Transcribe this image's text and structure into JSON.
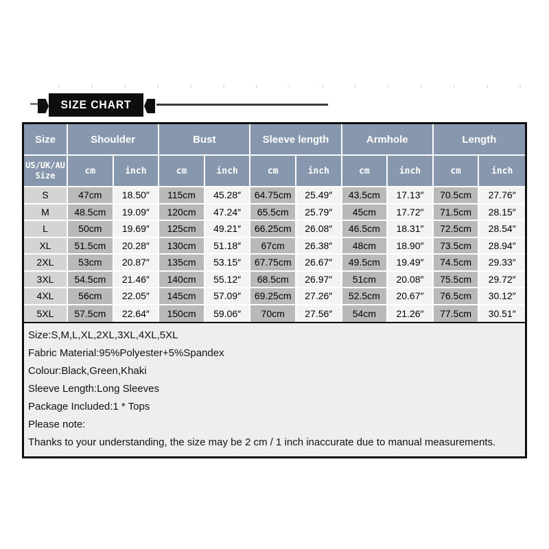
{
  "banner": {
    "title": "SIZE CHART"
  },
  "table": {
    "column_groups": [
      "Size",
      "Shoulder",
      "Bust",
      "Sleeve length",
      "Armhole",
      "Length"
    ],
    "size_header_line1": "US/UK/AU",
    "size_header_line2": "Size",
    "units": [
      "cm",
      "inch"
    ],
    "rows": [
      {
        "size": "S",
        "values": [
          "47cm",
          "18.50″",
          "115cm",
          "45.28″",
          "64.75cm",
          "25.49″",
          "43.5cm",
          "17.13″",
          "70.5cm",
          "27.76″"
        ]
      },
      {
        "size": "M",
        "values": [
          "48.5cm",
          "19.09″",
          "120cm",
          "47.24″",
          "65.5cm",
          "25.79″",
          "45cm",
          "17.72″",
          "71.5cm",
          "28.15″"
        ]
      },
      {
        "size": "L",
        "values": [
          "50cm",
          "19.69″",
          "125cm",
          "49.21″",
          "66.25cm",
          "26.08″",
          "46.5cm",
          "18.31″",
          "72.5cm",
          "28.54″"
        ]
      },
      {
        "size": "XL",
        "values": [
          "51.5cm",
          "20.28″",
          "130cm",
          "51.18″",
          "67cm",
          "26.38″",
          "48cm",
          "18.90″",
          "73.5cm",
          "28.94″"
        ]
      },
      {
        "size": "2XL",
        "values": [
          "53cm",
          "20.87″",
          "135cm",
          "53.15″",
          "67.75cm",
          "26.67″",
          "49.5cm",
          "19.49″",
          "74.5cm",
          "29.33″"
        ]
      },
      {
        "size": "3XL",
        "values": [
          "54.5cm",
          "21.46″",
          "140cm",
          "55.12″",
          "68.5cm",
          "26.97″",
          "51cm",
          "20.08″",
          "75.5cm",
          "29.72″"
        ]
      },
      {
        "size": "4XL",
        "values": [
          "56cm",
          "22.05″",
          "145cm",
          "57.09″",
          "69.25cm",
          "27.26″",
          "52.5cm",
          "20.67″",
          "76.5cm",
          "30.12″"
        ]
      },
      {
        "size": "5XL",
        "values": [
          "57.5cm",
          "22.64″",
          "150cm",
          "59.06″",
          "70cm",
          "27.56″",
          "54cm",
          "21.26″",
          "77.5cm",
          "30.51″"
        ]
      }
    ]
  },
  "notes": [
    "Size:S,M,L,XL,2XL,3XL,4XL,5XL",
    "Fabric Material:95%Polyester+5%Spandex",
    "Colour:Black,Green,Khaki",
    "Sleeve Length:Long Sleeves",
    "Package Included:1 * Tops",
    "Please note:",
    "Thanks to your understanding, the size may be 2 cm / 1 inch inaccurate due to manual measurements."
  ],
  "colors": {
    "header_bg": "#8697ae",
    "size_col_bg": "#d4d4d4",
    "cm_col_bg": "#b9b9b9",
    "inch_col_bg": "#f3f3f3",
    "notes_bg": "#eeeeee",
    "ribbon_bg": "#0e0e0e",
    "outer_border": "#0d0d0d"
  }
}
